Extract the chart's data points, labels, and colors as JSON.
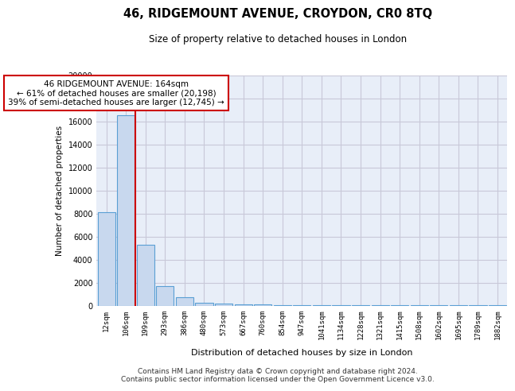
{
  "title": "46, RIDGEMOUNT AVENUE, CROYDON, CR0 8TQ",
  "subtitle": "Size of property relative to detached houses in London",
  "xlabel": "Distribution of detached houses by size in London",
  "ylabel": "Number of detached properties",
  "bar_color": "#c8d8ee",
  "bar_edge_color": "#5a9fd4",
  "grid_color": "#c8c8d8",
  "background_color": "#e8eef8",
  "tick_labels": [
    "12sqm",
    "106sqm",
    "199sqm",
    "293sqm",
    "386sqm",
    "480sqm",
    "573sqm",
    "667sqm",
    "760sqm",
    "854sqm",
    "947sqm",
    "1041sqm",
    "1134sqm",
    "1228sqm",
    "1321sqm",
    "1415sqm",
    "1508sqm",
    "1602sqm",
    "1695sqm",
    "1789sqm",
    "1882sqm"
  ],
  "bar_heights": [
    8100,
    16500,
    5300,
    1700,
    700,
    220,
    140,
    100,
    70,
    60,
    50,
    40,
    35,
    30,
    25,
    20,
    18,
    15,
    12,
    10,
    8
  ],
  "red_line_x": 1.5,
  "red_line_color": "#cc0000",
  "annotation_text": "46 RIDGEMOUNT AVENUE: 164sqm\n← 61% of detached houses are smaller (20,198)\n39% of semi-detached houses are larger (12,745) →",
  "annotation_box_color": "#ffffff",
  "annotation_edge_color": "#cc0000",
  "ylim": [
    0,
    20000
  ],
  "yticks": [
    0,
    2000,
    4000,
    6000,
    8000,
    10000,
    12000,
    14000,
    16000,
    18000,
    20000
  ],
  "footer_line1": "Contains HM Land Registry data © Crown copyright and database right 2024.",
  "footer_line2": "Contains public sector information licensed under the Open Government Licence v3.0."
}
